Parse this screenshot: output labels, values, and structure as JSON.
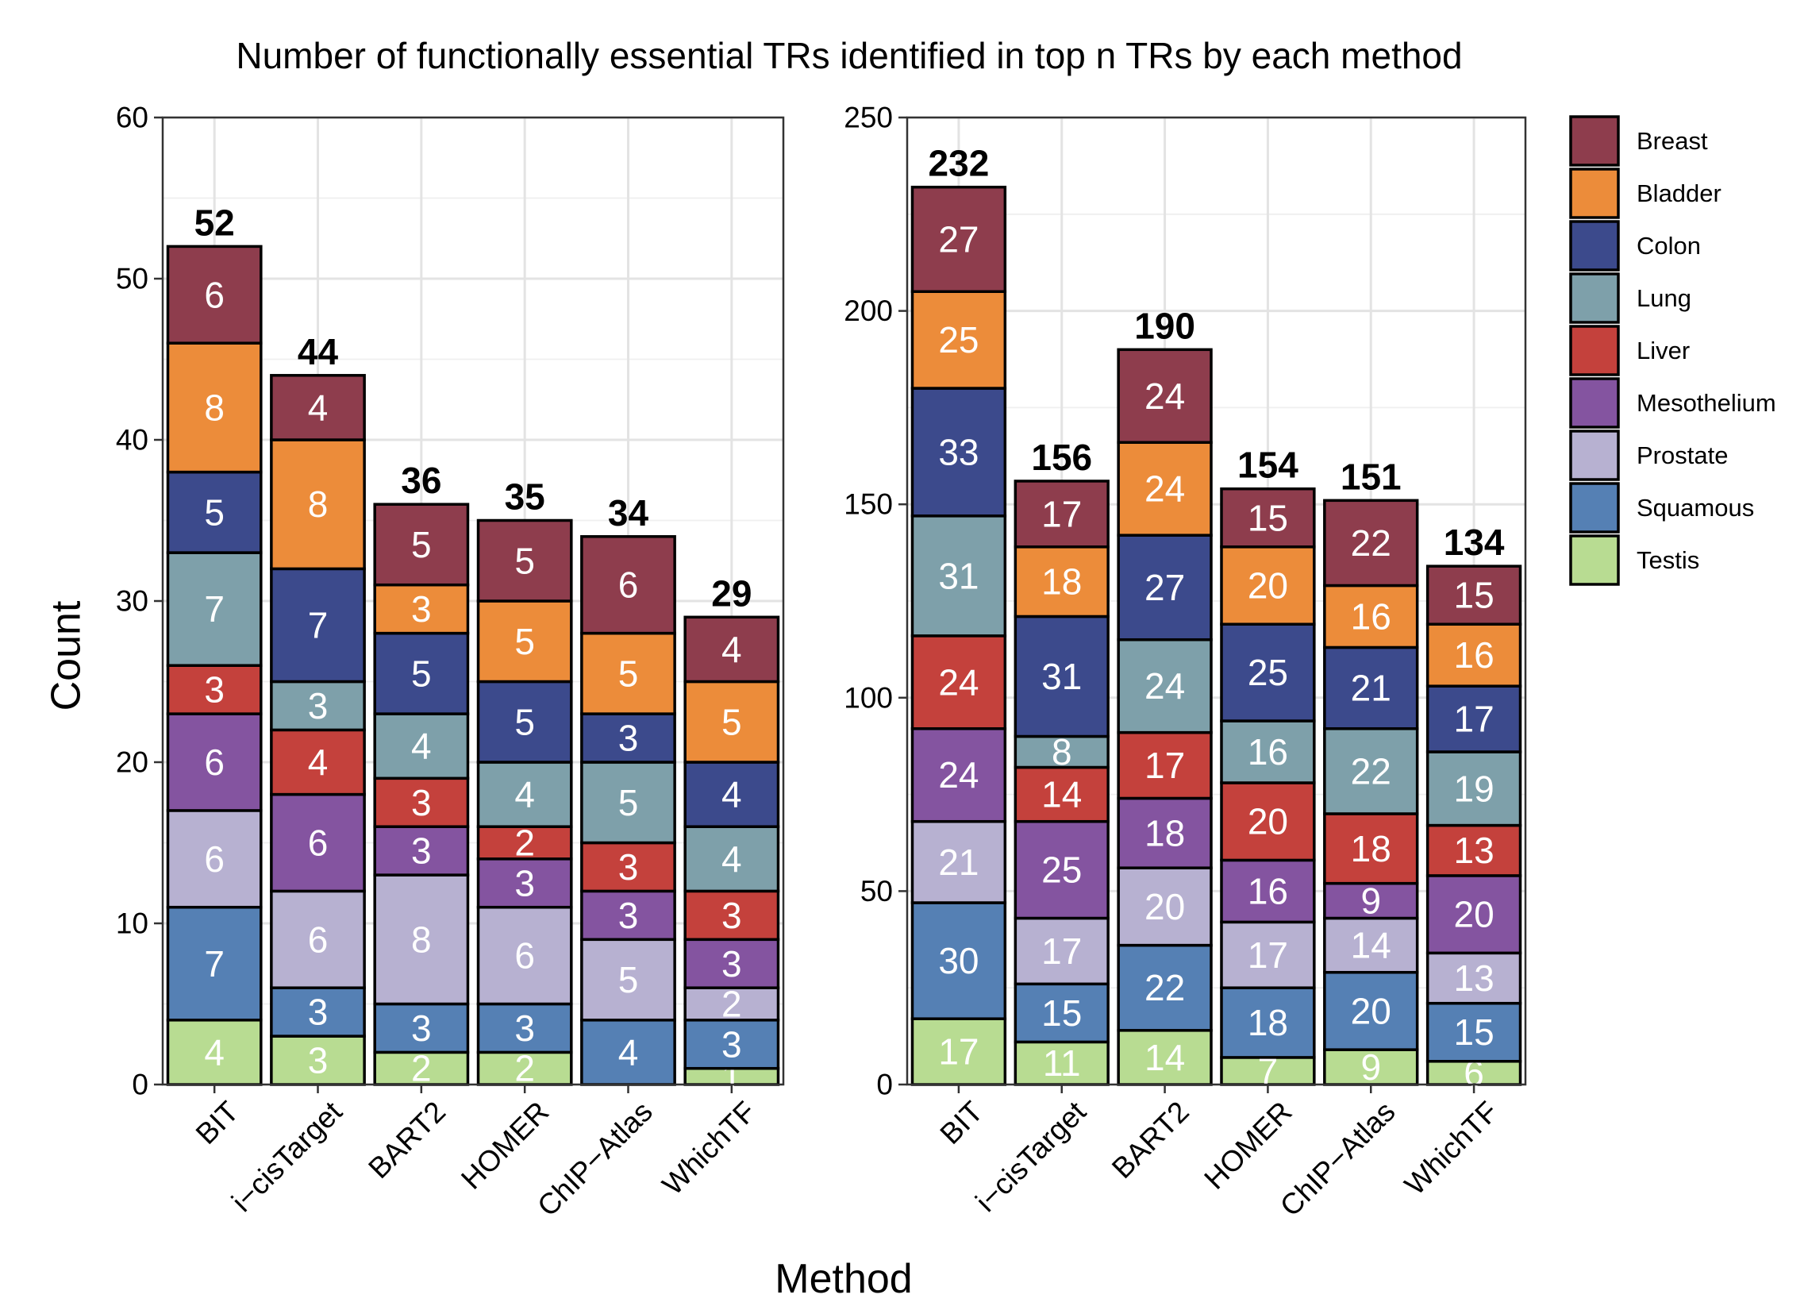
{
  "chart_data": {
    "type": "bar",
    "stacked": true,
    "title": "Number of functionally essential TRs identified in top n TRs by each method",
    "xlabel": "Method",
    "ylabel": "Count",
    "categories": [
      "BIT",
      "i−cisTarget",
      "BART2",
      "HOMER",
      "ChIP−Atlas",
      "WhichTF"
    ],
    "legend": {
      "position": "right",
      "entries": [
        "Breast",
        "Bladder",
        "Colon",
        "Lung",
        "Liver",
        "Mesothelium",
        "Prostate",
        "Squamous",
        "Testis"
      ]
    },
    "series_colors": {
      "Testis": "#b8dc92",
      "Squamous": "#5580b4",
      "Prostate": "#b7b1d1",
      "Mesothelium": "#8454a0",
      "Liver": "#c4413c",
      "Lung": "#7ea0aa",
      "Colon": "#3c4a8c",
      "Bladder": "#ec8c3a",
      "Breast": "#8e3d4d"
    },
    "stack_order": [
      "Testis",
      "Squamous",
      "Prostate",
      "Mesothelium",
      "Liver",
      "Lung",
      "Colon",
      "Bladder",
      "Breast"
    ],
    "grid": true,
    "panels": [
      {
        "ylim": [
          0,
          60
        ],
        "y_ticks": [
          "0",
          "10",
          "20",
          "30",
          "40",
          "50",
          "60"
        ],
        "totals": [
          52,
          44,
          36,
          35,
          34,
          29
        ],
        "series": [
          {
            "name": "Testis",
            "values": [
              4,
              3,
              2,
              2,
              0,
              1
            ]
          },
          {
            "name": "Squamous",
            "values": [
              7,
              3,
              3,
              3,
              4,
              3
            ]
          },
          {
            "name": "Prostate",
            "values": [
              6,
              6,
              8,
              6,
              5,
              2
            ]
          },
          {
            "name": "Mesothelium",
            "values": [
              6,
              6,
              3,
              3,
              3,
              3
            ]
          },
          {
            "name": "Liver",
            "values": [
              3,
              4,
              3,
              2,
              3,
              3
            ]
          },
          {
            "name": "Lung",
            "values": [
              7,
              3,
              4,
              4,
              5,
              4
            ]
          },
          {
            "name": "Colon",
            "values": [
              5,
              7,
              5,
              5,
              3,
              4
            ]
          },
          {
            "name": "Bladder",
            "values": [
              8,
              8,
              3,
              5,
              5,
              5
            ]
          },
          {
            "name": "Breast",
            "values": [
              6,
              4,
              5,
              5,
              6,
              4
            ]
          }
        ]
      },
      {
        "ylim": [
          0,
          250
        ],
        "y_ticks": [
          "0",
          "50",
          "100",
          "150",
          "200",
          "250"
        ],
        "totals": [
          232,
          156,
          190,
          154,
          151,
          134
        ],
        "series": [
          {
            "name": "Testis",
            "values": [
              17,
              11,
              14,
              7,
              9,
              6
            ]
          },
          {
            "name": "Squamous",
            "values": [
              30,
              15,
              22,
              18,
              20,
              15
            ]
          },
          {
            "name": "Prostate",
            "values": [
              21,
              17,
              20,
              17,
              14,
              13
            ]
          },
          {
            "name": "Mesothelium",
            "values": [
              24,
              25,
              18,
              16,
              9,
              20
            ]
          },
          {
            "name": "Liver",
            "values": [
              24,
              14,
              17,
              20,
              18,
              13
            ]
          },
          {
            "name": "Lung",
            "values": [
              31,
              8,
              24,
              16,
              22,
              19
            ]
          },
          {
            "name": "Colon",
            "values": [
              33,
              31,
              27,
              25,
              21,
              17
            ]
          },
          {
            "name": "Bladder",
            "values": [
              25,
              18,
              24,
              20,
              16,
              16
            ]
          },
          {
            "name": "Breast",
            "values": [
              27,
              17,
              24,
              15,
              22,
              15
            ]
          }
        ]
      }
    ]
  }
}
